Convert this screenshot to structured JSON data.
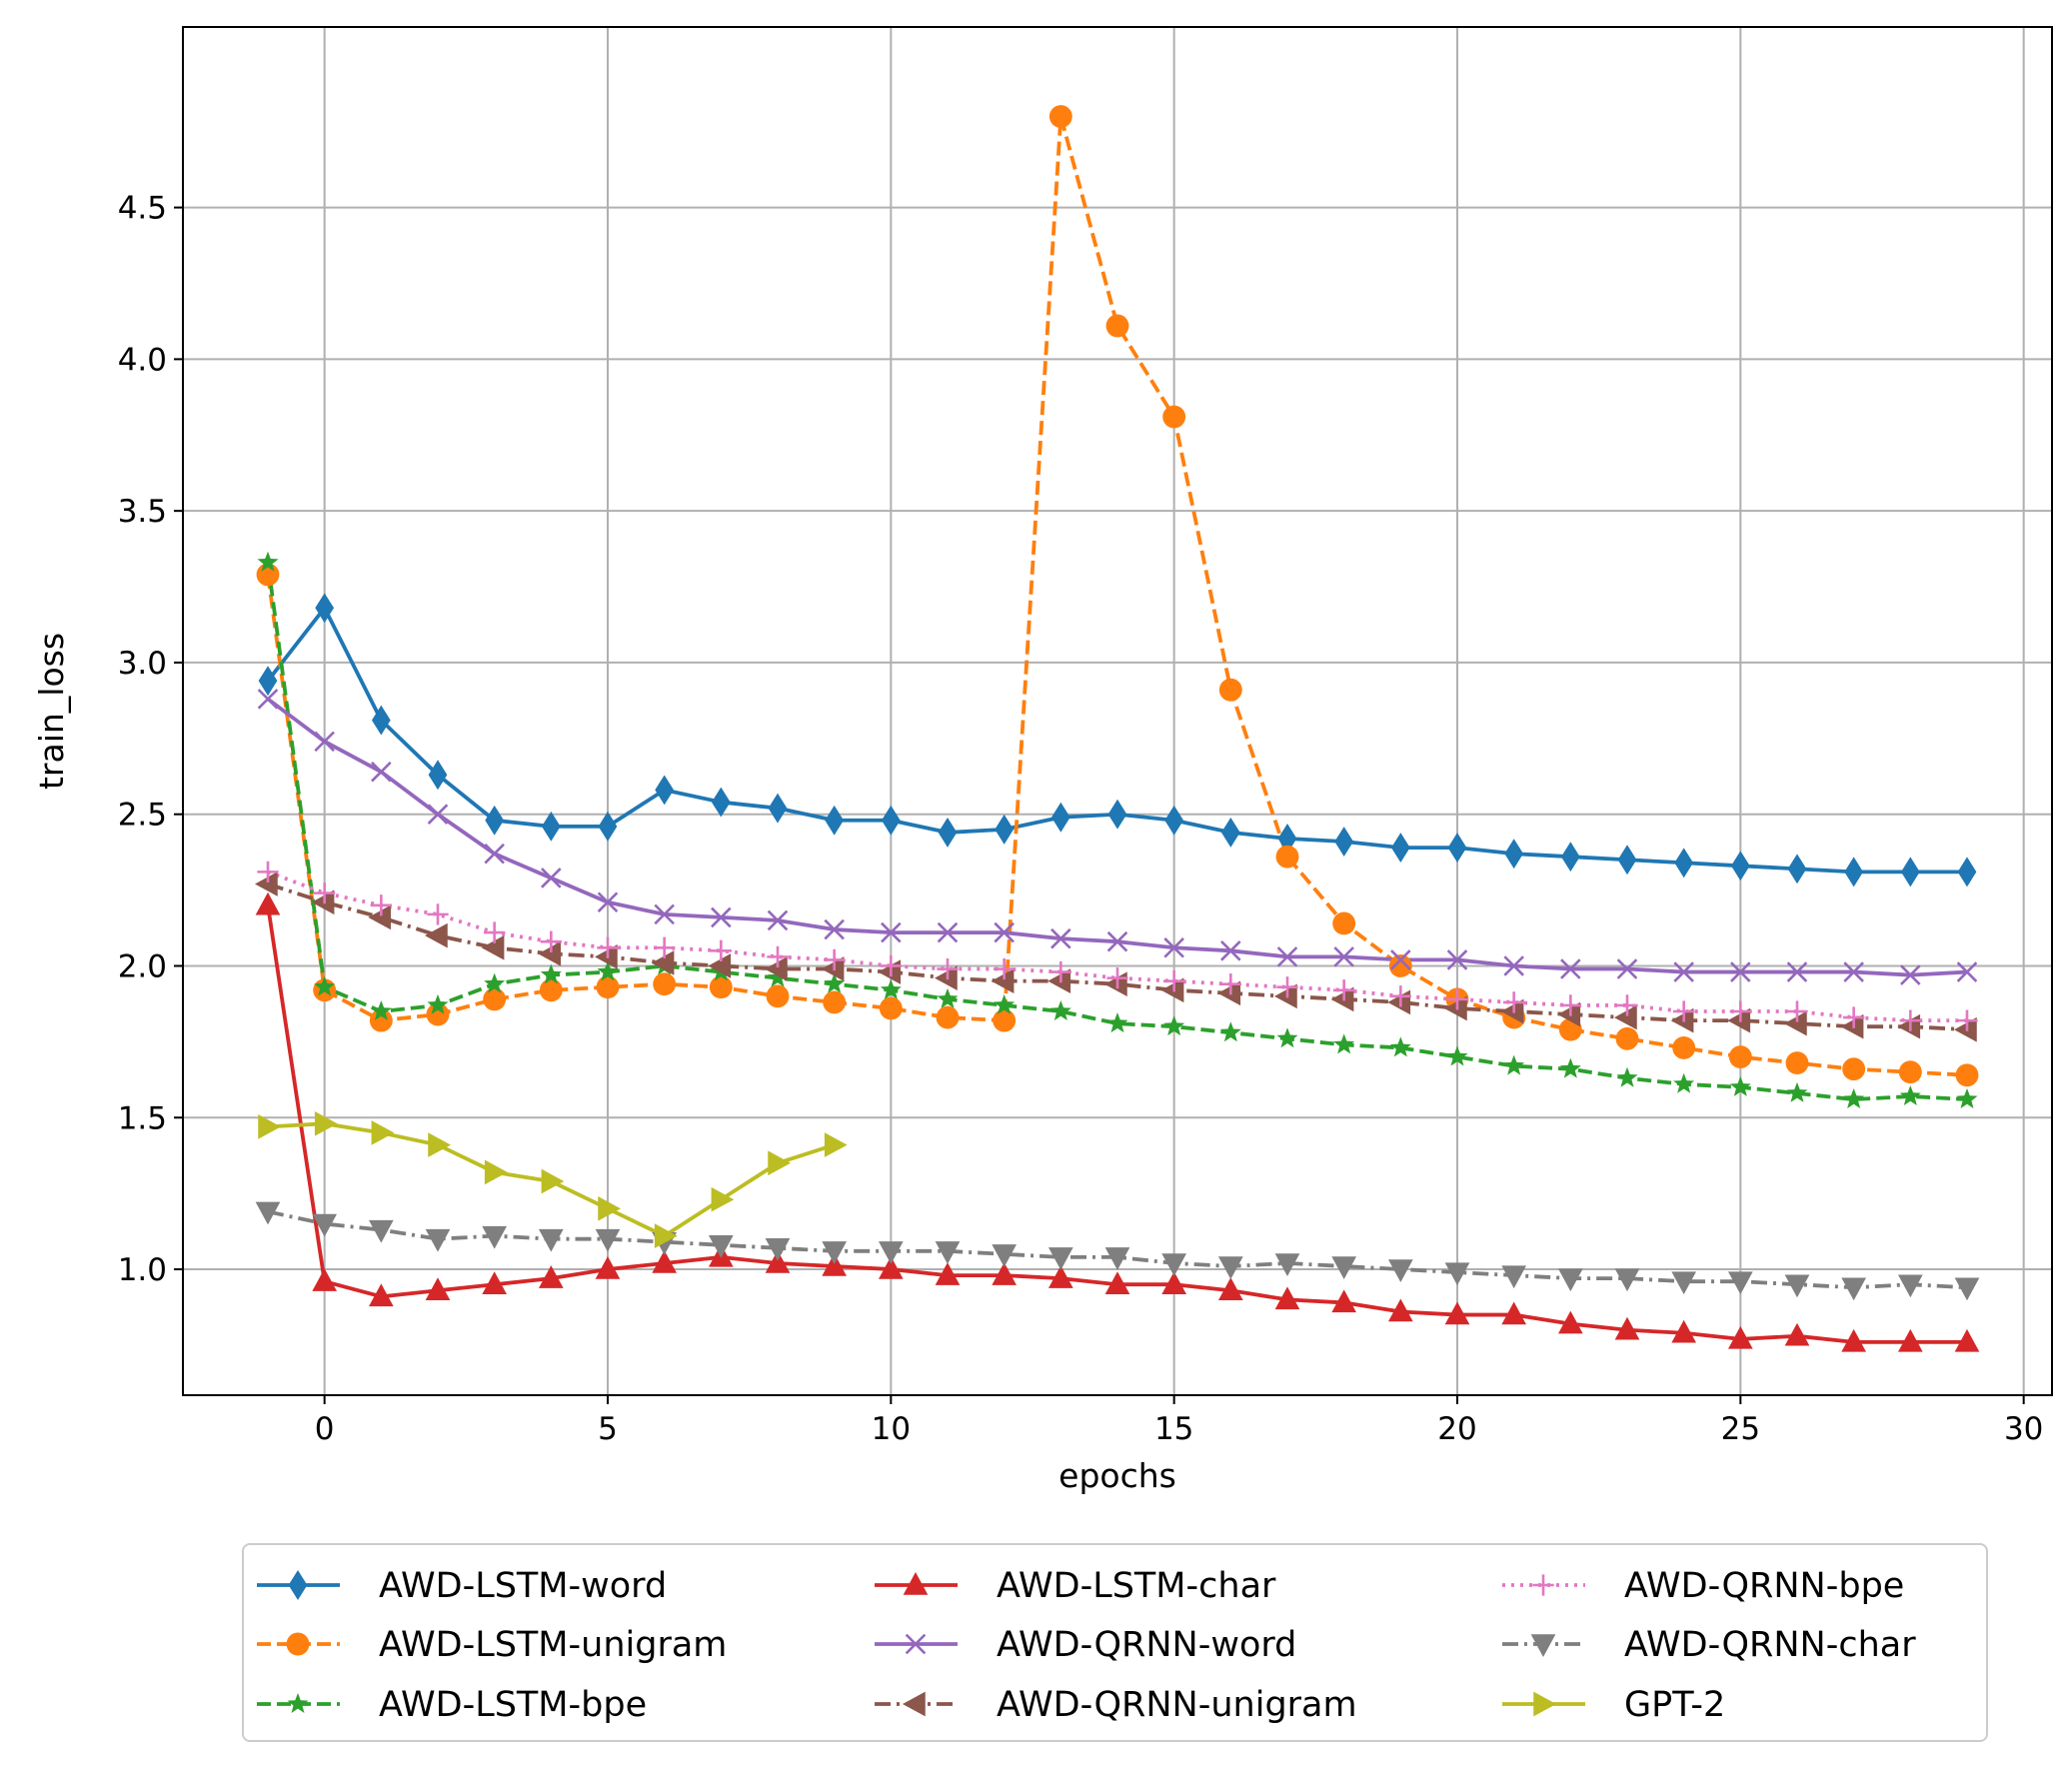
{
  "chart_data": {
    "type": "line",
    "xlabel": "epochs",
    "ylabel": "train_loss",
    "xlim": [
      -2.5,
      30.5
    ],
    "ylim": [
      0.585,
      5.095
    ],
    "xticks": [
      0,
      5,
      10,
      15,
      20,
      25,
      30
    ],
    "yticks": [
      1.0,
      1.5,
      2.0,
      2.5,
      3.0,
      3.5,
      4.0,
      4.5
    ],
    "xtick_labels": [
      "0",
      "5",
      "10",
      "15",
      "20",
      "25",
      "30"
    ],
    "ytick_labels": [
      "1.0",
      "1.5",
      "2.0",
      "2.5",
      "3.0",
      "3.5",
      "4.0",
      "4.5"
    ],
    "grid": true,
    "legend_placement": "below",
    "series": [
      {
        "name": "AWD-LSTM-word",
        "color": "#1f77b4",
        "marker": "diamond",
        "dash": "solid",
        "x": [
          -1,
          0,
          1,
          2,
          3,
          4,
          5,
          6,
          7,
          8,
          9,
          10,
          11,
          12,
          13,
          14,
          15,
          16,
          17,
          18,
          19,
          20,
          21,
          22,
          23,
          24,
          25,
          26,
          27,
          28,
          29
        ],
        "values": [
          2.94,
          3.18,
          2.81,
          2.63,
          2.48,
          2.46,
          2.46,
          2.58,
          2.54,
          2.52,
          2.48,
          2.48,
          2.44,
          2.45,
          2.49,
          2.5,
          2.48,
          2.44,
          2.42,
          2.41,
          2.39,
          2.39,
          2.37,
          2.36,
          2.35,
          2.34,
          2.33,
          2.32,
          2.31,
          2.31,
          2.31
        ]
      },
      {
        "name": "AWD-LSTM-unigram",
        "color": "#ff7f0e",
        "marker": "circle",
        "dash": "dashed",
        "x": [
          -1,
          0,
          1,
          2,
          3,
          4,
          5,
          6,
          7,
          8,
          9,
          10,
          11,
          12,
          13,
          14,
          15,
          16,
          17,
          18,
          19,
          20,
          21,
          22,
          23,
          24,
          25,
          26,
          27,
          28,
          29
        ],
        "values": [
          3.29,
          1.92,
          1.82,
          1.84,
          1.89,
          1.92,
          1.93,
          1.94,
          1.93,
          1.9,
          1.88,
          1.86,
          1.83,
          1.82,
          4.8,
          4.11,
          3.81,
          2.91,
          2.36,
          2.14,
          2.0,
          1.89,
          1.83,
          1.79,
          1.76,
          1.73,
          1.7,
          1.68,
          1.66,
          1.65,
          1.64
        ]
      },
      {
        "name": "AWD-LSTM-bpe",
        "color": "#2ca02c",
        "marker": "star",
        "dash": "dashed",
        "x": [
          -1,
          0,
          1,
          2,
          3,
          4,
          5,
          6,
          7,
          8,
          9,
          10,
          11,
          12,
          13,
          14,
          15,
          16,
          17,
          18,
          19,
          20,
          21,
          22,
          23,
          24,
          25,
          26,
          27,
          28,
          29
        ],
        "values": [
          3.33,
          1.93,
          1.85,
          1.87,
          1.94,
          1.97,
          1.98,
          2.0,
          1.98,
          1.96,
          1.94,
          1.92,
          1.89,
          1.87,
          1.85,
          1.81,
          1.8,
          1.78,
          1.76,
          1.74,
          1.73,
          1.7,
          1.67,
          1.66,
          1.63,
          1.61,
          1.6,
          1.58,
          1.56,
          1.57,
          1.56
        ]
      },
      {
        "name": "AWD-LSTM-char",
        "color": "#d62728",
        "marker": "triangle-up",
        "dash": "solid",
        "x": [
          -1,
          0,
          1,
          2,
          3,
          4,
          5,
          6,
          7,
          8,
          9,
          10,
          11,
          12,
          13,
          14,
          15,
          16,
          17,
          18,
          19,
          20,
          21,
          22,
          23,
          24,
          25,
          26,
          27,
          28,
          29
        ],
        "values": [
          2.2,
          0.96,
          0.91,
          0.93,
          0.95,
          0.97,
          1.0,
          1.02,
          1.04,
          1.02,
          1.01,
          1.0,
          0.98,
          0.98,
          0.97,
          0.95,
          0.95,
          0.93,
          0.9,
          0.89,
          0.86,
          0.85,
          0.85,
          0.82,
          0.8,
          0.79,
          0.77,
          0.78,
          0.76,
          0.76,
          0.76
        ]
      },
      {
        "name": "AWD-QRNN-word",
        "color": "#9467bd",
        "marker": "x",
        "dash": "solid",
        "x": [
          -1,
          0,
          1,
          2,
          3,
          4,
          5,
          6,
          7,
          8,
          9,
          10,
          11,
          12,
          13,
          14,
          15,
          16,
          17,
          18,
          19,
          20,
          21,
          22,
          23,
          24,
          25,
          26,
          27,
          28,
          29
        ],
        "values": [
          2.88,
          2.74,
          2.64,
          2.5,
          2.37,
          2.29,
          2.21,
          2.17,
          2.16,
          2.15,
          2.12,
          2.11,
          2.11,
          2.11,
          2.09,
          2.08,
          2.06,
          2.05,
          2.03,
          2.03,
          2.02,
          2.02,
          2.0,
          1.99,
          1.99,
          1.98,
          1.98,
          1.98,
          1.98,
          1.97,
          1.98
        ]
      },
      {
        "name": "AWD-QRNN-unigram",
        "color": "#8c564b",
        "marker": "triangle-left",
        "dash": "dashdot",
        "x": [
          -1,
          0,
          1,
          2,
          3,
          4,
          5,
          6,
          7,
          8,
          9,
          10,
          11,
          12,
          13,
          14,
          15,
          16,
          17,
          18,
          19,
          20,
          21,
          22,
          23,
          24,
          25,
          26,
          27,
          28,
          29
        ],
        "values": [
          2.27,
          2.21,
          2.16,
          2.1,
          2.06,
          2.04,
          2.03,
          2.01,
          2.0,
          1.99,
          1.99,
          1.98,
          1.96,
          1.95,
          1.95,
          1.94,
          1.92,
          1.91,
          1.9,
          1.89,
          1.88,
          1.86,
          1.85,
          1.84,
          1.83,
          1.82,
          1.82,
          1.81,
          1.8,
          1.8,
          1.79
        ]
      },
      {
        "name": "AWD-QRNN-bpe",
        "color": "#e377c2",
        "marker": "plus",
        "dash": "dotted",
        "x": [
          -1,
          0,
          1,
          2,
          3,
          4,
          5,
          6,
          7,
          8,
          9,
          10,
          11,
          12,
          13,
          14,
          15,
          16,
          17,
          18,
          19,
          20,
          21,
          22,
          23,
          24,
          25,
          26,
          27,
          28,
          29
        ],
        "values": [
          2.31,
          2.24,
          2.2,
          2.17,
          2.11,
          2.08,
          2.06,
          2.06,
          2.05,
          2.03,
          2.02,
          2.0,
          1.99,
          1.99,
          1.98,
          1.96,
          1.95,
          1.94,
          1.93,
          1.92,
          1.9,
          1.89,
          1.88,
          1.87,
          1.87,
          1.85,
          1.85,
          1.85,
          1.83,
          1.82,
          1.82
        ]
      },
      {
        "name": "AWD-QRNN-char",
        "color": "#7f7f7f",
        "marker": "triangle-down",
        "dash": "dashdot",
        "x": [
          -1,
          0,
          1,
          2,
          3,
          4,
          5,
          6,
          7,
          8,
          9,
          10,
          11,
          12,
          13,
          14,
          15,
          16,
          17,
          18,
          19,
          20,
          21,
          22,
          23,
          24,
          25,
          26,
          27,
          28,
          29
        ],
        "values": [
          1.19,
          1.15,
          1.13,
          1.1,
          1.11,
          1.1,
          1.1,
          1.09,
          1.08,
          1.07,
          1.06,
          1.06,
          1.06,
          1.05,
          1.04,
          1.04,
          1.02,
          1.01,
          1.02,
          1.01,
          1.0,
          0.99,
          0.98,
          0.97,
          0.97,
          0.96,
          0.96,
          0.95,
          0.94,
          0.95,
          0.94
        ]
      },
      {
        "name": "GPT-2",
        "color": "#bcbd22",
        "marker": "triangle-right",
        "dash": "solid",
        "x": [
          -1,
          0,
          1,
          2,
          3,
          4,
          5,
          6,
          7,
          8,
          9
        ],
        "values": [
          1.47,
          1.48,
          1.45,
          1.41,
          1.32,
          1.29,
          1.2,
          1.11,
          1.23,
          1.35,
          1.41
        ]
      }
    ]
  }
}
